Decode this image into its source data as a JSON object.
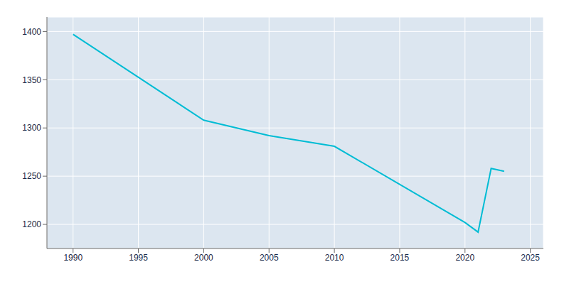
{
  "chart_data": {
    "type": "line",
    "x": [
      1990,
      2000,
      2005,
      2010,
      2020,
      2021,
      2022,
      2023
    ],
    "values": [
      1397,
      1308,
      1292,
      1281,
      1202,
      1192,
      1258,
      1255
    ],
    "color": "#00bcd4",
    "xlim": [
      1988,
      2026
    ],
    "ylim": [
      1175,
      1415
    ],
    "xticks": [
      1990,
      1995,
      2000,
      2005,
      2010,
      2015,
      2020,
      2025
    ],
    "yticks": [
      1200,
      1250,
      1300,
      1350,
      1400
    ],
    "grid": true
  }
}
